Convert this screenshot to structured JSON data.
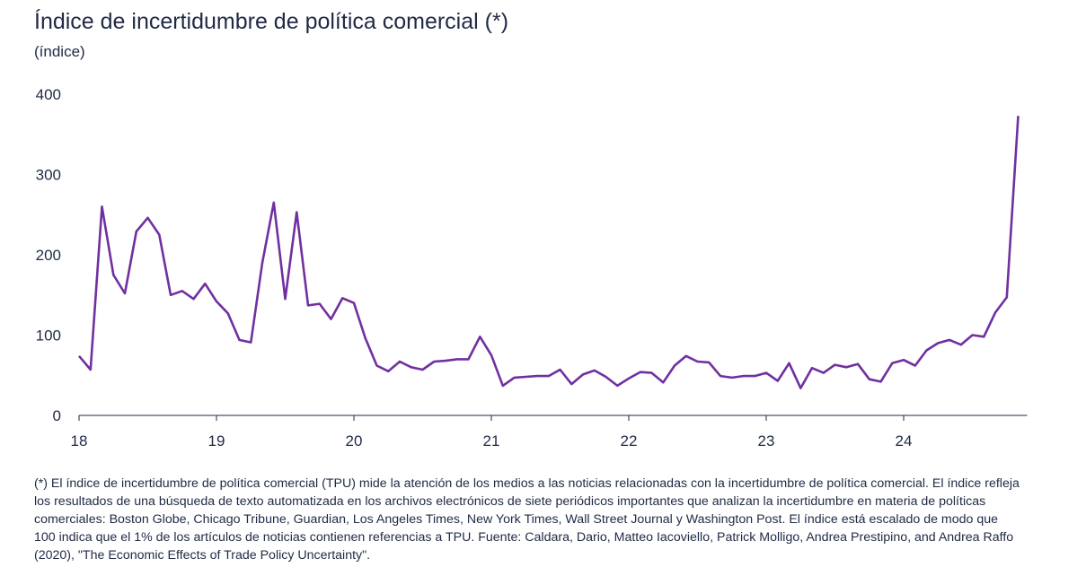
{
  "header": {
    "title": "Índice de incertidumbre de política comercial (*)",
    "subtitle": "(índice)"
  },
  "footnote": "(*) El índice de incertidumbre de política comercial (TPU) mide la atención de los medios a las noticias relacionadas con la incertidumbre de política comercial. El índice refleja los resultados de una búsqueda de texto automatizada en los archivos electrónicos de siete periódicos importantes que analizan la incertidumbre en materia de políticas comerciales: Boston Globe, Chicago Tribune, Guardian, Los Angeles Times, New York Times, Wall Street Journal y Washington Post. El índice está escalado de modo que 100 indica que el 1% de los artículos de noticias contienen referencias a TPU. Fuente: Caldara, Dario, Matteo Iacoviello, Patrick Molligo, Andrea Prestipino, and Andrea Raffo (2020), \"The Economic Effects of Trade Policy Uncertainty\".",
  "chart_data": {
    "type": "line",
    "title": "Índice de incertidumbre de política comercial (*)",
    "ylabel": "(índice)",
    "xlabel": "",
    "ylim": [
      0,
      400
    ],
    "yticks": [
      0,
      100,
      200,
      300,
      400
    ],
    "xticks": [
      "18",
      "19",
      "20",
      "21",
      "22",
      "23",
      "24"
    ],
    "x_start": "2018-01",
    "frequency": "monthly",
    "grid": false,
    "color": "#7030a0",
    "series": [
      {
        "values": [
          74,
          57,
          260,
          175,
          152,
          229,
          246,
          225,
          150,
          155,
          145,
          164,
          142,
          127,
          94,
          91,
          190,
          265,
          145,
          253,
          137,
          139,
          120,
          146,
          140,
          96,
          62,
          55,
          67,
          60,
          57,
          67,
          68,
          70,
          70,
          98,
          75,
          37,
          47,
          48,
          49,
          49,
          57,
          39,
          51,
          56,
          48,
          37,
          46,
          54,
          53,
          41,
          62,
          74,
          67,
          66,
          49,
          47,
          49,
          49,
          53,
          43,
          65,
          34,
          59,
          53,
          63,
          60,
          64,
          45,
          42,
          65,
          69,
          62,
          81,
          90,
          94,
          88,
          100,
          98,
          128,
          147,
          373
        ]
      }
    ]
  }
}
